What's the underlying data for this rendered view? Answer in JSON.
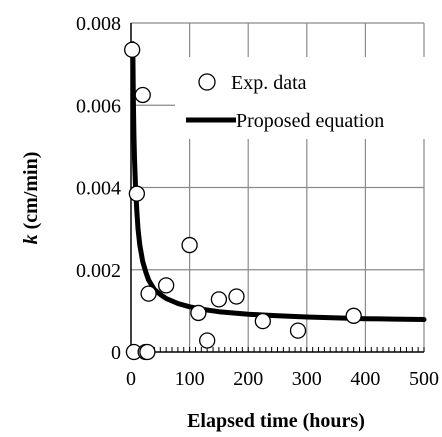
{
  "chart_data": {
    "type": "scatter",
    "xlabel": "Elapsed time (hours)",
    "ylabel_italic": "k",
    "ylabel_rest": " (cm/min)",
    "xlim": [
      0,
      500
    ],
    "ylim": [
      0,
      0.008
    ],
    "xticks": [
      0,
      100,
      200,
      300,
      400,
      500
    ],
    "xtick_labels": [
      "0",
      "100",
      "200",
      "300",
      "400",
      "500"
    ],
    "yticks": [
      0,
      0.002,
      0.004,
      0.006,
      0.008
    ],
    "ytick_labels": [
      "0",
      "0.002",
      "0.004",
      "0.006",
      "0.008"
    ],
    "grid": true,
    "legend_placement": "top-right",
    "series": [
      {
        "name": "Exp. data",
        "marker": "open-circle",
        "x": [
          2,
          5,
          10,
          20,
          25,
          28,
          30,
          60,
          100,
          115,
          130,
          150,
          180,
          225,
          285,
          380
        ],
        "y": [
          0.00735,
          0.0,
          0.00385,
          0.00625,
          0.0,
          0.0,
          0.00142,
          0.00162,
          0.0026,
          0.00095,
          0.00028,
          0.00128,
          0.00135,
          0.00075,
          0.00052,
          0.00088
        ]
      },
      {
        "name": "Proposed equation",
        "style": "line",
        "color": "#000000",
        "x": [
          3,
          4,
          5,
          6,
          8,
          10,
          12,
          15,
          20,
          25,
          30,
          40,
          50,
          60,
          80,
          100,
          125,
          150,
          200,
          250,
          300,
          350,
          400,
          450,
          500
        ],
        "y": [
          0.0075,
          0.0062,
          0.0053,
          0.0047,
          0.0039,
          0.0034,
          0.003,
          0.0026,
          0.0022,
          0.00195,
          0.00175,
          0.00152,
          0.0014,
          0.0013,
          0.00118,
          0.0011,
          0.00103,
          0.00098,
          0.00092,
          0.00088,
          0.00085,
          0.00083,
          0.00081,
          0.0008,
          0.00079
        ]
      }
    ]
  }
}
